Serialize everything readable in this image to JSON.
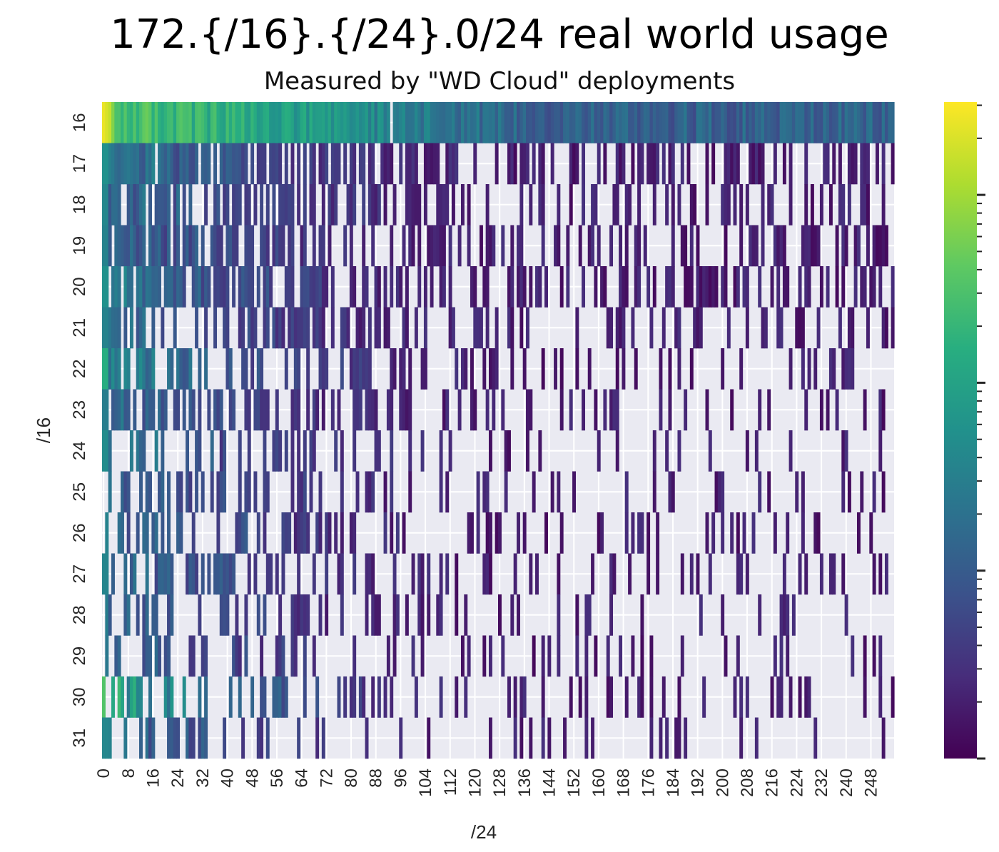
{
  "chart_data": {
    "type": "heatmap",
    "title": "172.{/16}.{/24}.0/24 real world usage",
    "subtitle": "Measured by \"WD Cloud\" deployments",
    "xlabel": "/24",
    "ylabel": "/16",
    "x_tick_labels": [
      "0",
      "8",
      "16",
      "24",
      "32",
      "40",
      "48",
      "56",
      "64",
      "72",
      "80",
      "88",
      "96",
      "104",
      "112",
      "120",
      "128",
      "136",
      "144",
      "152",
      "160",
      "168",
      "176",
      "184",
      "192",
      "200",
      "208",
      "216",
      "224",
      "232",
      "240",
      "248"
    ],
    "y_tick_labels": [
      "16",
      "17",
      "18",
      "19",
      "20",
      "21",
      "22",
      "23",
      "24",
      "25",
      "26",
      "27",
      "28",
      "29",
      "30",
      "31"
    ],
    "x_range": [
      0,
      255
    ],
    "y_range": [
      16,
      31
    ],
    "colormap": "viridis",
    "color_scale": "log",
    "missing_color": "#eaeaf2",
    "grid": true,
    "colorbar": "right",
    "row_density": [
      0.99,
      0.66,
      0.58,
      0.58,
      0.64,
      0.5,
      0.4,
      0.44,
      0.33,
      0.38,
      0.36,
      0.32,
      0.3,
      0.3,
      0.34,
      0.26
    ],
    "row_max": [
      0.88,
      0.5,
      0.46,
      0.44,
      0.5,
      0.44,
      0.62,
      0.42,
      0.48,
      0.46,
      0.44,
      0.45,
      0.42,
      0.4,
      0.72,
      0.46
    ],
    "note_rows": "Row 16: max at /24=0 near top of color scale; columns 0-100 show high usage decaying to the right."
  }
}
